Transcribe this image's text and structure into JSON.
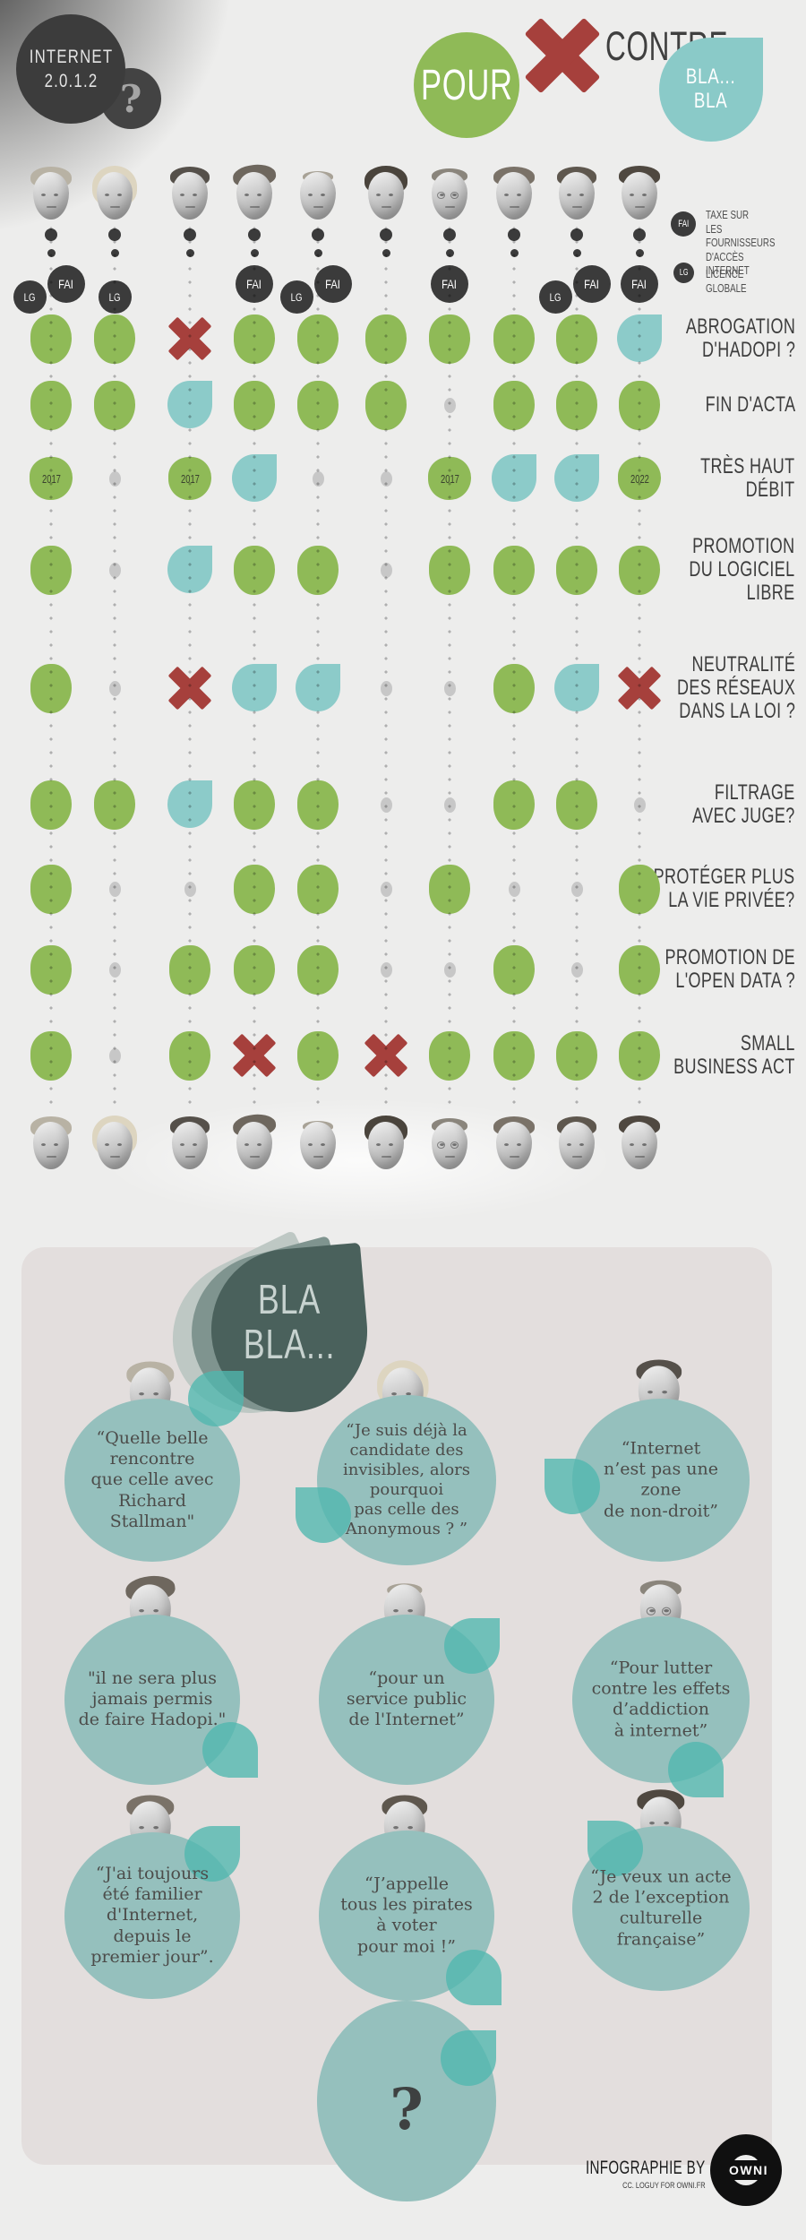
{
  "header": {
    "title": "INTERNET\n2.0.1.2",
    "question_mark": "?",
    "legend": {
      "pour": "POUR",
      "contre": "CONTRE",
      "blabla": "BLA...\nBLA"
    }
  },
  "symbol_legend": {
    "fai_abbr": "FAI",
    "fai_text": "TAXE SUR\nLES FOURNISSEURS\nD'ACCÈS INTERNET",
    "lg_abbr": "LG",
    "lg_text": "LICENCE GLOBALE"
  },
  "colors": {
    "pour": "#8fba57",
    "contre": "#a6403c",
    "blabla": "#8ccbc9",
    "quote_bubble": "#95c0bd",
    "accent_drop": "#4fb7ae",
    "dark": "#3b3b3b",
    "panel": "#e3dedd",
    "title_drop": "#4a615c"
  },
  "candidates": [
    {
      "id": "candidate-1",
      "portrait": "portrait-1",
      "badges": [
        "LG",
        "FAI"
      ]
    },
    {
      "id": "candidate-2",
      "portrait": "portrait-2",
      "badges": [
        "LG"
      ]
    },
    {
      "id": "candidate-3",
      "portrait": "portrait-3",
      "badges": []
    },
    {
      "id": "candidate-4",
      "portrait": "portrait-4",
      "badges": [
        "FAI"
      ]
    },
    {
      "id": "candidate-5",
      "portrait": "portrait-5",
      "badges": [
        "LG",
        "FAI"
      ]
    },
    {
      "id": "candidate-6",
      "portrait": "portrait-6",
      "badges": []
    },
    {
      "id": "candidate-7",
      "portrait": "portrait-7",
      "badges": [
        "FAI"
      ]
    },
    {
      "id": "candidate-8",
      "portrait": "portrait-8",
      "badges": []
    },
    {
      "id": "candidate-9",
      "portrait": "portrait-9",
      "badges": [
        "LG",
        "FAI"
      ]
    },
    {
      "id": "candidate-10",
      "portrait": "portrait-10",
      "badges": [
        "FAI"
      ]
    }
  ],
  "topics": [
    {
      "label": "ABROGATION\nD'HADOPI ?",
      "cells": [
        {
          "type": "pour"
        },
        {
          "type": "pour"
        },
        {
          "type": "contre"
        },
        {
          "type": "pour"
        },
        {
          "type": "pour"
        },
        {
          "type": "pour"
        },
        {
          "type": "pour"
        },
        {
          "type": "pour"
        },
        {
          "type": "pour"
        },
        {
          "type": "blabla"
        }
      ]
    },
    {
      "label": "FIN D'ACTA",
      "cells": [
        {
          "type": "pour"
        },
        {
          "type": "pour"
        },
        {
          "type": "blabla"
        },
        {
          "type": "pour"
        },
        {
          "type": "pour"
        },
        {
          "type": "pour"
        },
        {
          "type": "none"
        },
        {
          "type": "pour"
        },
        {
          "type": "pour"
        },
        {
          "type": "pour"
        }
      ]
    },
    {
      "label": "TRÈS HAUT\nDÉBIT",
      "cells": [
        {
          "type": "pour",
          "year": "2017"
        },
        {
          "type": "none"
        },
        {
          "type": "pour",
          "year": "2017"
        },
        {
          "type": "blabla"
        },
        {
          "type": "none"
        },
        {
          "type": "none"
        },
        {
          "type": "pour",
          "year": "2017"
        },
        {
          "type": "blabla"
        },
        {
          "type": "blabla"
        },
        {
          "type": "pour",
          "year": "2022"
        }
      ]
    },
    {
      "label": "PROMOTION\nDU LOGICIEL\nLIBRE",
      "cells": [
        {
          "type": "pour"
        },
        {
          "type": "none"
        },
        {
          "type": "blabla"
        },
        {
          "type": "pour"
        },
        {
          "type": "pour"
        },
        {
          "type": "none"
        },
        {
          "type": "pour"
        },
        {
          "type": "pour"
        },
        {
          "type": "pour"
        },
        {
          "type": "pour"
        }
      ]
    },
    {
      "label": "NEUTRALITÉ\nDES RÉSEAUX\nDANS LA LOI ?",
      "cells": [
        {
          "type": "pour"
        },
        {
          "type": "none"
        },
        {
          "type": "contre"
        },
        {
          "type": "blabla"
        },
        {
          "type": "blabla"
        },
        {
          "type": "none"
        },
        {
          "type": "none"
        },
        {
          "type": "pour"
        },
        {
          "type": "blabla"
        },
        {
          "type": "contre"
        }
      ]
    },
    {
      "label": "FILTRAGE\nAVEC JUGE?",
      "cells": [
        {
          "type": "pour"
        },
        {
          "type": "pour"
        },
        {
          "type": "blabla"
        },
        {
          "type": "pour"
        },
        {
          "type": "pour"
        },
        {
          "type": "none"
        },
        {
          "type": "none"
        },
        {
          "type": "pour"
        },
        {
          "type": "pour"
        },
        {
          "type": "none"
        }
      ]
    },
    {
      "label": "PROTÉGER PLUS\nLA VIE PRIVÉE?",
      "cells": [
        {
          "type": "pour"
        },
        {
          "type": "none"
        },
        {
          "type": "none"
        },
        {
          "type": "pour"
        },
        {
          "type": "pour"
        },
        {
          "type": "none"
        },
        {
          "type": "pour"
        },
        {
          "type": "none"
        },
        {
          "type": "none"
        },
        {
          "type": "pour"
        }
      ]
    },
    {
      "label": "PROMOTION DE\nL'OPEN DATA ?",
      "cells": [
        {
          "type": "pour"
        },
        {
          "type": "none"
        },
        {
          "type": "pour"
        },
        {
          "type": "pour"
        },
        {
          "type": "pour"
        },
        {
          "type": "none"
        },
        {
          "type": "none"
        },
        {
          "type": "pour"
        },
        {
          "type": "none"
        },
        {
          "type": "pour"
        }
      ]
    },
    {
      "label": "SMALL\nBUSINESS ACT",
      "cells": [
        {
          "type": "pour"
        },
        {
          "type": "none"
        },
        {
          "type": "pour"
        },
        {
          "type": "contre"
        },
        {
          "type": "pour"
        },
        {
          "type": "contre"
        },
        {
          "type": "pour"
        },
        {
          "type": "pour"
        },
        {
          "type": "pour"
        },
        {
          "type": "pour"
        }
      ]
    }
  ],
  "quotes_section": {
    "title": "BLA\nBLA...",
    "quotes": [
      {
        "portrait": "portrait-1",
        "text": "“Quelle belle\nrencontre\nque celle avec\nRichard\nStallman\""
      },
      {
        "portrait": "portrait-2",
        "text": "“Je suis déjà la\ncandidate des\ninvisibles, alors\npourquoi\npas celle des\nAnonymous ? ”"
      },
      {
        "portrait": "portrait-3",
        "text": "“Internet\nn’est pas une\nzone\nde non-droit”"
      },
      {
        "portrait": "portrait-4",
        "text": "\"il ne sera plus\njamais permis\nde faire Hadopi.\""
      },
      {
        "portrait": "portrait-5",
        "text": "“pour un\nservice public\nde l'Internet”"
      },
      {
        "portrait": "portrait-7",
        "text": "“Pour lutter\ncontre les effets\nd’addiction\nà internet”"
      },
      {
        "portrait": "portrait-8",
        "text": "“J'ai toujours\nété familier\nd'Internet,\ndepuis le\npremier jour”."
      },
      {
        "portrait": "portrait-9",
        "text": "“J’appelle\ntous les pirates\nà voter\npour moi !”"
      },
      {
        "portrait": "portrait-10",
        "text": "“Je veux un acte\n2 de l’exception\nculturelle\nfrançaise”"
      },
      {
        "portrait": "portrait-6",
        "text": "?"
      }
    ]
  },
  "footer": {
    "credit": "INFOGRAPHIE BY",
    "subcredit": "CC. LOGUY FOR OWNI.FR",
    "logo_text": "OWNI"
  }
}
